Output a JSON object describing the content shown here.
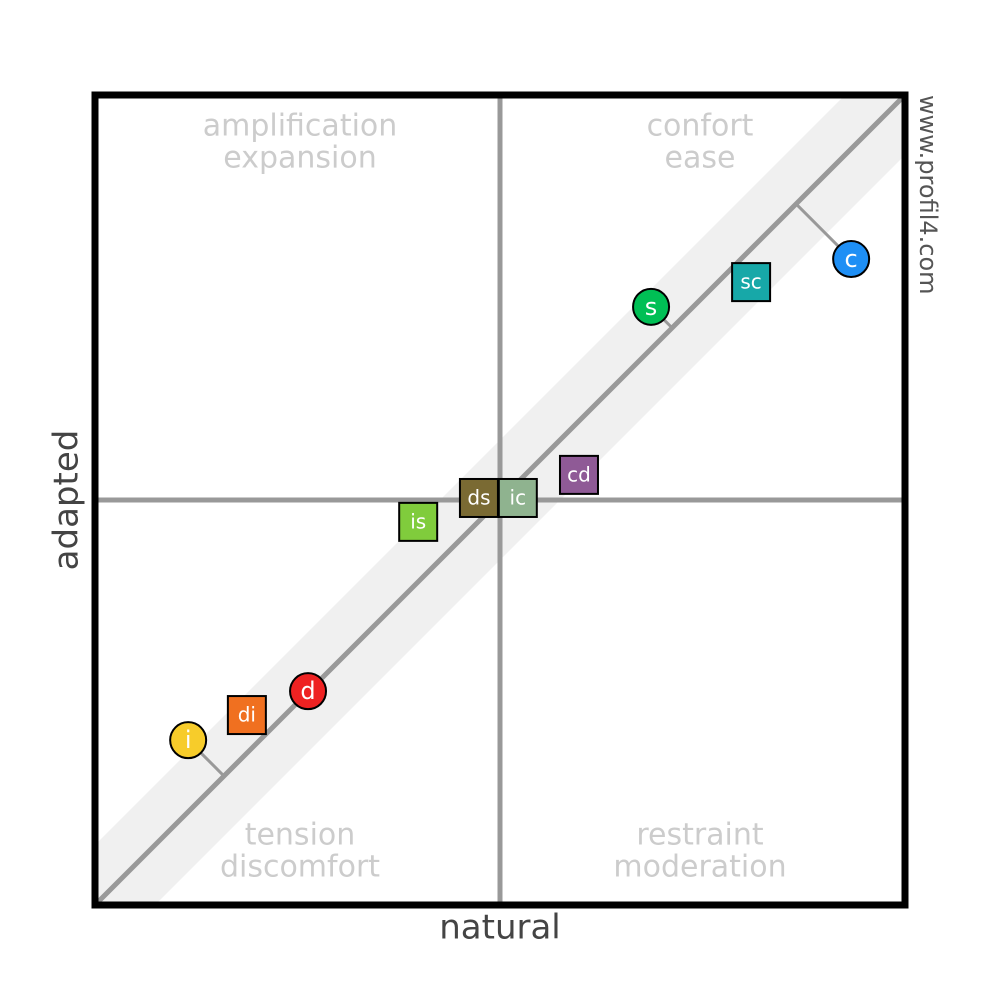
{
  "chart_data": {
    "type": "scatter",
    "x_label": "natural",
    "y_label": "adapted",
    "watermark": "www.profil4.com",
    "xlim": [
      -100,
      100
    ],
    "ylim": [
      -100,
      100
    ],
    "quadrant_labels": {
      "top_left": [
        "amplification",
        "expansion"
      ],
      "top_right": [
        "confort",
        "ease"
      ],
      "bottom_left": [
        "tension",
        "discomfort"
      ],
      "bottom_right": [
        "restraint",
        "moderation"
      ]
    },
    "points": [
      {
        "label": "c",
        "shape": "circle",
        "color": "#1e8ff5",
        "x": 86.7,
        "y": 59.5
      },
      {
        "label": "sc",
        "shape": "square",
        "color": "#17a8a8",
        "x": 62.0,
        "y": 53.8
      },
      {
        "label": "s",
        "shape": "circle",
        "color": "#00bf55",
        "x": 37.3,
        "y": 47.7
      },
      {
        "label": "cd",
        "shape": "square",
        "color": "#8f5a96",
        "x": 19.5,
        "y": 6.2
      },
      {
        "label": "ic",
        "shape": "square",
        "color": "#8fb38f",
        "x": 4.4,
        "y": 0.5
      },
      {
        "label": "ds",
        "shape": "square",
        "color": "#7a6a33",
        "x": -5.2,
        "y": 0.5
      },
      {
        "label": "is",
        "shape": "square",
        "color": "#80cc3c",
        "x": -20.2,
        "y": -5.4
      },
      {
        "label": "d",
        "shape": "circle",
        "color": "#ee2222",
        "x": -47.4,
        "y": -47.2
      },
      {
        "label": "di",
        "shape": "square",
        "color": "#f07020",
        "x": -62.5,
        "y": -53.1
      },
      {
        "label": "i",
        "shape": "circle",
        "color": "#f7cc2a",
        "x": -77.0,
        "y": -59.3
      }
    ]
  }
}
